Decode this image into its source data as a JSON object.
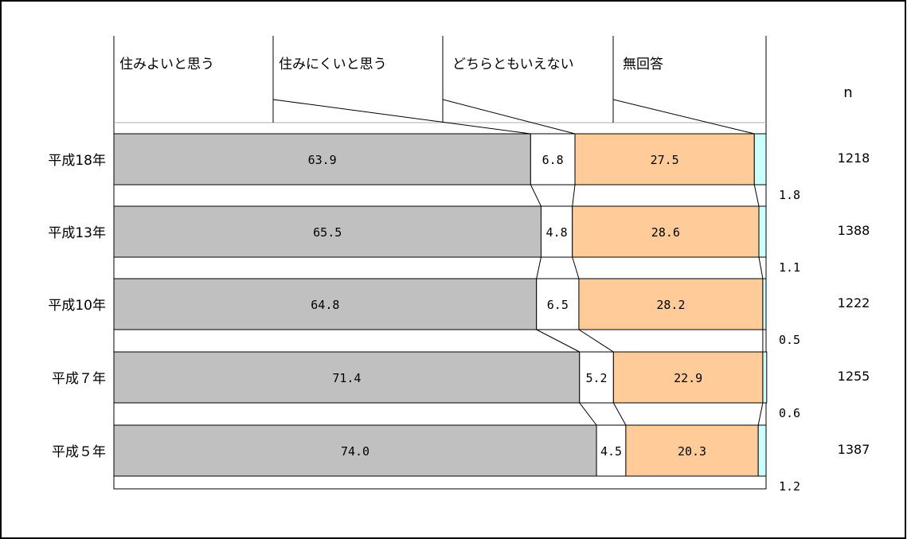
{
  "chart_data": {
    "type": "bar",
    "stacked": true,
    "orientation": "horizontal",
    "percent_stacked": true,
    "categories": [
      "平成18年",
      "平成13年",
      "平成10年",
      "平成７年",
      "平成５年"
    ],
    "series": [
      {
        "name": "住みよいと思う",
        "values": [
          63.9,
          65.5,
          64.8,
          71.4,
          74.0
        ],
        "labels": [
          "63.9",
          "65.5",
          "64.8",
          "71.4",
          "74.0"
        ],
        "color": "#c0c0c0"
      },
      {
        "name": "住みにくいと思う",
        "values": [
          6.8,
          4.8,
          6.5,
          5.2,
          4.5
        ],
        "labels": [
          "6.8",
          "4.8",
          "6.5",
          "5.2",
          "4.5"
        ],
        "color": "#ffffff"
      },
      {
        "name": "どちらともいえない",
        "values": [
          27.5,
          28.6,
          28.2,
          22.9,
          20.3
        ],
        "labels": [
          "27.5",
          "28.6",
          "28.2",
          "22.9",
          "20.3"
        ],
        "color": "#ffcc99"
      },
      {
        "name": "無回答",
        "values": [
          1.8,
          1.1,
          0.5,
          0.6,
          1.2
        ],
        "labels": [
          "1.8",
          "1.1",
          "0.5",
          "0.6",
          "1.2"
        ],
        "color": "#ccffff"
      }
    ],
    "n_header": "n",
    "n_values": [
      "1218",
      "1388",
      "1222",
      "1255",
      "1387"
    ],
    "xlim": [
      0,
      100
    ],
    "grid": false,
    "series_lines": true,
    "legend_position": "top"
  }
}
